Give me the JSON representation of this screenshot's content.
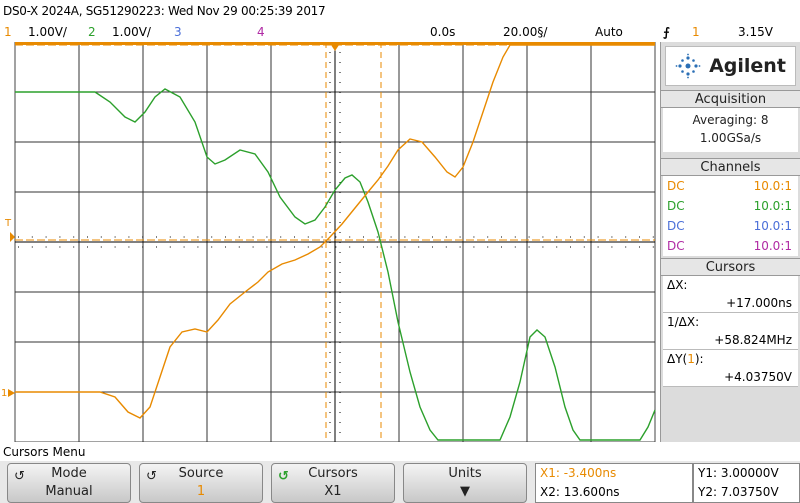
{
  "title": "DS0-X 2024A, SG51290223: Wed Nov 29 00:25:39 2017",
  "channel_bar": {
    "ch1_num": "1",
    "ch1_scale": "1.00V/",
    "ch2_num": "2",
    "ch2_scale": "1.00V/",
    "ch3_num": "3",
    "ch4_num": "4",
    "time_pos": "0.0s",
    "time_scale": "20.00§/",
    "trigger_mode": "Auto",
    "trigger_icon": "rising-edge",
    "trigger_ch": "1",
    "trigger_level": "3.15V"
  },
  "colors": {
    "ch1": "#e88a00",
    "ch2": "#2ca02c",
    "ch3": "#4a6ed8",
    "ch4": "#b02aa4"
  },
  "sidebar": {
    "logo_text": "Agilent",
    "acquisition": {
      "header": "Acquisition",
      "mode": "Averaging: 8",
      "rate": "1.00GSa/s"
    },
    "channels": {
      "header": "Channels",
      "rows": [
        {
          "coupling": "DC",
          "probe": "10.0:1"
        },
        {
          "coupling": "DC",
          "probe": "10.0:1"
        },
        {
          "coupling": "DC",
          "probe": "10.0:1"
        },
        {
          "coupling": "DC",
          "probe": "10.0:1"
        }
      ]
    },
    "cursors": {
      "header": "Cursors",
      "dx_label": "ΔX:",
      "dx_value": "+17.000ns",
      "inv_label": "1/ΔX:",
      "inv_value": "+58.824MHz",
      "dy_label_pre": "ΔY(",
      "dy_label_ch": "1",
      "dy_label_post": "):",
      "dy_value": "+4.03750V"
    }
  },
  "menu": {
    "label": "Cursors Menu",
    "softkeys": [
      {
        "top": "Mode",
        "bottom": "Manual"
      },
      {
        "top": "Source",
        "bottom": "1"
      },
      {
        "top": "Cursors",
        "bottom": "X1"
      },
      {
        "top": "Units",
        "bottom": ""
      }
    ],
    "readout_x": {
      "x1": "X1: -3.400ns",
      "x2": "X2: 13.600ns"
    },
    "readout_y": {
      "y1": "Y1: 3.00000V",
      "y2": "Y2: 7.03750V"
    }
  },
  "screen_markers": {
    "trigger_marker": "T",
    "ground_marker": "1"
  }
}
